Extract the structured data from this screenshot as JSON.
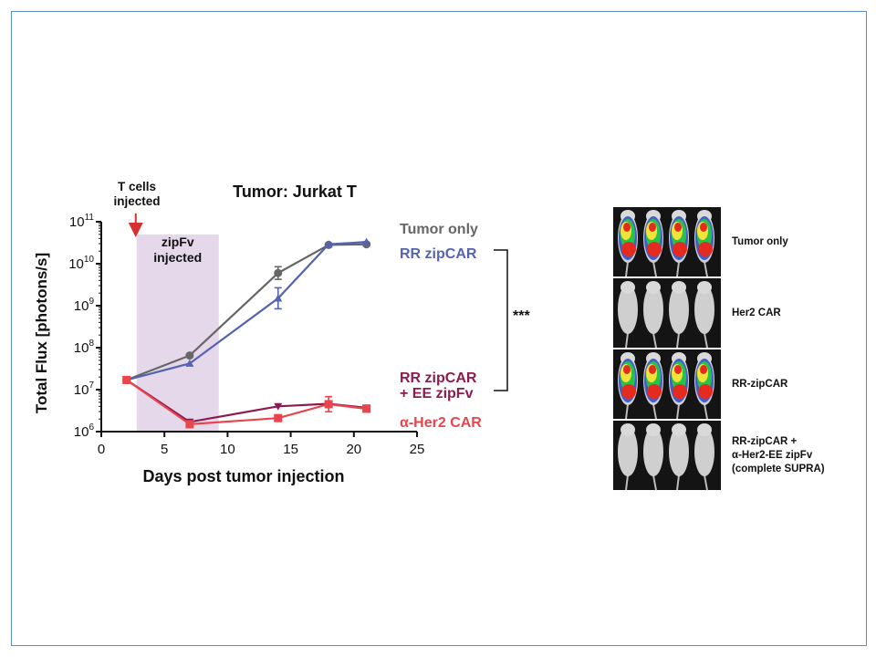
{
  "chart_data": {
    "type": "line",
    "title": "Tumor: Jurkat T",
    "xlabel": "Days post tumor injection",
    "ylabel": "Total Flux [photons/s]",
    "xlim": [
      0,
      25
    ],
    "ylim": [
      1000000,
      100000000000
    ],
    "yscale": "log",
    "x_ticks": [
      "0",
      "5",
      "10",
      "15",
      "20",
      "25"
    ],
    "y_ticks": [
      {
        "base": "10",
        "exp": "6",
        "value": 1000000
      },
      {
        "base": "10",
        "exp": "7",
        "value": 10000000
      },
      {
        "base": "10",
        "exp": "8",
        "value": 100000000
      },
      {
        "base": "10",
        "exp": "9",
        "value": 1000000000
      },
      {
        "base": "10",
        "exp": "10",
        "value": 10000000000
      },
      {
        "base": "10",
        "exp": "11",
        "value": 100000000000
      }
    ],
    "shaded_region": {
      "x": [
        2.8,
        9.3
      ],
      "label": "zipFv\ninjected",
      "color": "#e4d8ea"
    },
    "arrow_annotation": {
      "x": 2.8,
      "label": "T cells\ninjected",
      "color": "#d62f2f"
    },
    "significance": "***",
    "series": [
      {
        "name": "Tumor only",
        "color": "#666666",
        "marker": "circle",
        "x": [
          2,
          7,
          14,
          18,
          21
        ],
        "y": [
          17000000,
          65000000,
          6000000000,
          28000000000,
          29000000000
        ],
        "err": [
          0,
          0,
          0.15,
          0,
          0
        ]
      },
      {
        "name": "RR zipCAR",
        "color": "#5563b0",
        "marker": "triangle-up",
        "x": [
          2,
          7,
          14,
          18,
          21
        ],
        "y": [
          17000000,
          42000000,
          1500000000,
          29000000000,
          33000000000
        ],
        "err": [
          0,
          0,
          0.25,
          0,
          0
        ]
      },
      {
        "name": "RR zipCAR\n+ EE zipFv",
        "color": "#8c1b4f",
        "marker": "triangle-down",
        "x": [
          2,
          7,
          14,
          18,
          21
        ],
        "y": [
          17000000,
          1700000,
          4000000,
          4600000,
          3700000
        ],
        "err": [
          0,
          0,
          0,
          0,
          0
        ]
      },
      {
        "name": "α-Her2 CAR",
        "color": "#e8454d",
        "marker": "square",
        "x": [
          2,
          7,
          14,
          18,
          21
        ],
        "y": [
          17000000,
          1500000,
          2100000,
          4500000,
          3500000
        ],
        "err": [
          0,
          0,
          0,
          0.18,
          0
        ]
      }
    ]
  },
  "imaging_panel": {
    "rows": [
      {
        "label": "Tumor only",
        "signal": true
      },
      {
        "label": "Her2 CAR",
        "signal": false
      },
      {
        "label": "RR-zipCAR",
        "signal": true
      },
      {
        "label": "RR-zipCAR +\nα-Her2-EE zipFv\n(complete SUPRA)",
        "signal": false
      }
    ],
    "mice_per_row": 4
  }
}
